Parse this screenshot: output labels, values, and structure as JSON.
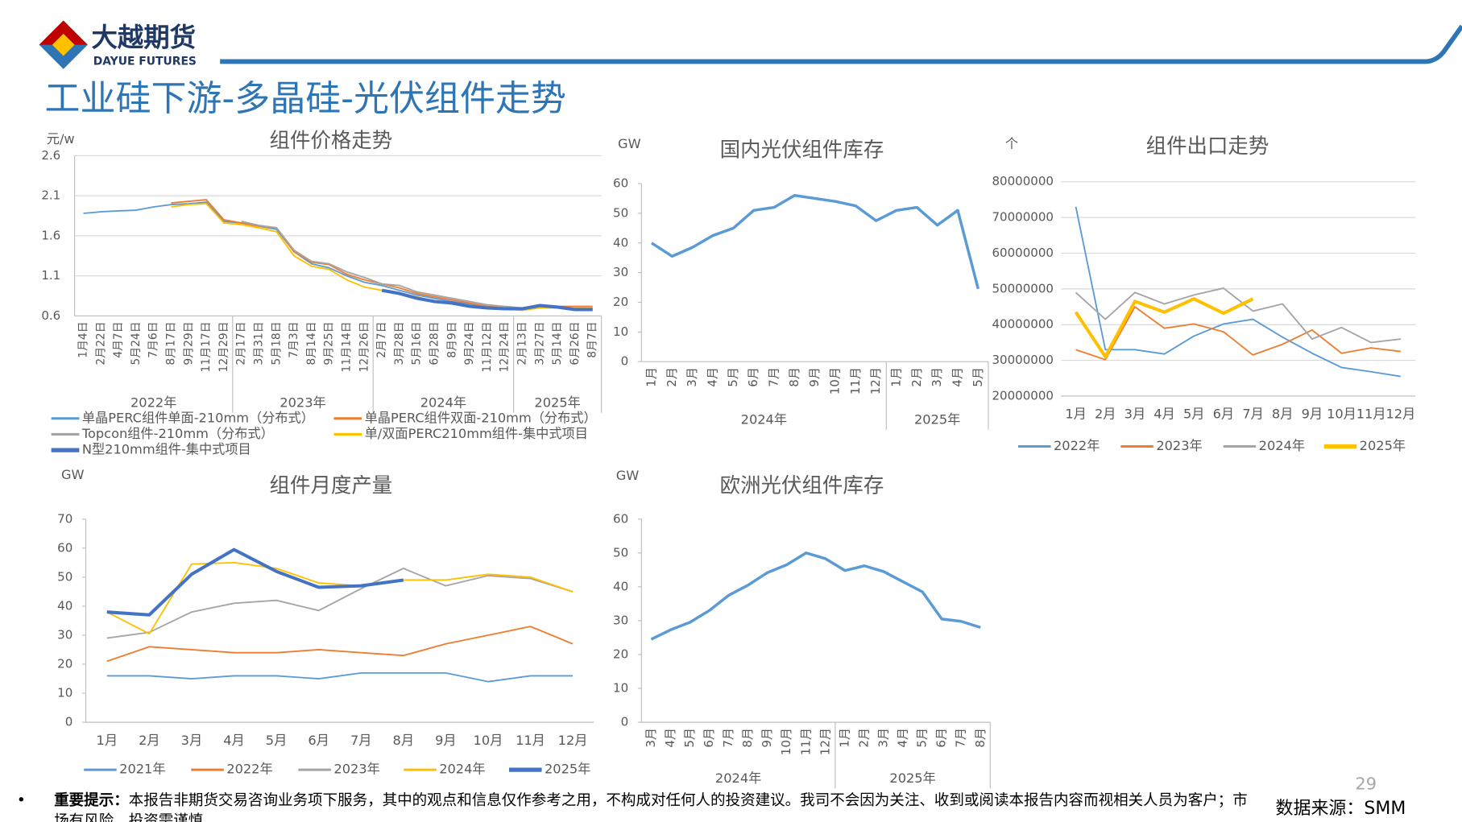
{
  "header": {
    "logo_cn": "大越期货",
    "logo_en": "DAYUE FUTURES",
    "title": "工业硅下游-多晶硅-光伏组件走势"
  },
  "footer": {
    "bullet": "•",
    "label": "重要提示：",
    "text": "本报告非期货交易咨询业务项下服务，其中的观点和信息仅作参考之用，不构成对任何人的投资建议。我司不会因为关注、收到或阅读本报告内容而视相关人员为客户；市场有风险，投资需谨慎。",
    "source": "数据来源：SMM",
    "page": "29"
  },
  "chart_data": [
    {
      "type": "line",
      "title": "组件价格走势",
      "y_unit": "元/w",
      "grid": true,
      "ylim": [
        0.6,
        2.6
      ],
      "yticks": [
        0.6,
        1.1,
        1.6,
        2.1,
        2.6
      ],
      "groups": [
        {
          "label": "2022年",
          "categories": [
            "1月4日",
            "2月22日",
            "4月7日",
            "5月24日",
            "7月6日",
            "8月17日",
            "9月29日",
            "11月17日",
            "12月29日"
          ]
        },
        {
          "label": "2023年",
          "categories": [
            "2月17日",
            "3月31日",
            "5月18日",
            "7月3日",
            "8月14日",
            "9月25日",
            "11月14日",
            "12月26日"
          ]
        },
        {
          "label": "2024年",
          "categories": [
            "2月7日",
            "3月28日",
            "5月16日",
            "6月28日",
            "8月9日",
            "9月24日",
            "11月12日",
            "12月24日"
          ]
        },
        {
          "label": "2025年",
          "categories": [
            "2月13日",
            "3月27日",
            "5月14日",
            "6月26日",
            "8月7日"
          ]
        }
      ],
      "series": [
        {
          "name": "单晶PERC组件单面-210mm（分布式）",
          "color": "#5b9bd5",
          "values": [
            1.88,
            1.9,
            1.91,
            1.92,
            1.96,
            1.99,
            2.0,
            2.02,
            1.78,
            1.76,
            1.72,
            1.68,
            1.4,
            1.25,
            1.2,
            1.1,
            1.02,
            0.98,
            0.92,
            0.86,
            0.82,
            0.78,
            0.75,
            0.72,
            0.7,
            0.68,
            0.74,
            0.72,
            0.7,
            0.68
          ]
        },
        {
          "name": "单晶PERC组件双面-210mm（分布式）",
          "color": "#ed7d31",
          "values": [
            null,
            null,
            null,
            null,
            null,
            2.01,
            2.03,
            2.05,
            1.8,
            1.76,
            1.72,
            1.7,
            1.4,
            1.27,
            1.24,
            1.12,
            1.05,
            1.0,
            0.95,
            0.88,
            0.84,
            0.8,
            0.76,
            0.72,
            0.7,
            0.7,
            0.72,
            0.72,
            0.72,
            0.72
          ]
        },
        {
          "name": "Topcon组件-210mm（分布式）",
          "color": "#a5a5a5",
          "values": [
            null,
            null,
            null,
            null,
            null,
            null,
            null,
            null,
            null,
            1.78,
            1.73,
            1.7,
            1.42,
            1.28,
            1.25,
            1.15,
            1.08,
            1.0,
            0.98,
            0.9,
            0.86,
            0.82,
            0.78,
            0.74,
            0.72,
            0.7,
            0.72,
            0.71,
            0.7,
            0.7
          ]
        },
        {
          "name": "单/双面PERC210mm组件-集中式项目",
          "color": "#ffc000",
          "values": [
            null,
            null,
            null,
            null,
            null,
            1.96,
            1.99,
            2.0,
            1.76,
            1.74,
            1.7,
            1.65,
            1.35,
            1.22,
            1.18,
            1.05,
            0.96,
            0.92,
            0.88,
            0.84,
            0.78,
            0.76,
            0.72,
            0.7,
            0.69,
            0.67,
            0.7,
            0.7,
            0.7,
            0.7
          ]
        },
        {
          "name": "N型210mm组件-集中式项目",
          "color": "#4472c4",
          "values": [
            null,
            null,
            null,
            null,
            null,
            null,
            null,
            null,
            null,
            null,
            null,
            null,
            null,
            null,
            null,
            null,
            null,
            0.92,
            0.88,
            0.82,
            0.78,
            0.76,
            0.72,
            0.7,
            0.69,
            0.69,
            0.73,
            0.71,
            0.68,
            0.68
          ]
        }
      ]
    },
    {
      "type": "line",
      "title": "国内光伏组件库存",
      "y_unit": "GW",
      "grid": false,
      "ylim": [
        0,
        60
      ],
      "yticks": [
        0,
        10,
        20,
        30,
        40,
        50,
        60
      ],
      "color": "#5b9bd5",
      "groups": [
        {
          "label": "2024年",
          "categories": [
            "1月",
            "2月",
            "3月",
            "4月",
            "5月",
            "6月",
            "7月",
            "8月",
            "9月",
            "10月",
            "11月",
            "12月"
          ]
        },
        {
          "label": "2025年",
          "categories": [
            "1月",
            "2月",
            "3月",
            "4月",
            "5月"
          ]
        }
      ],
      "values": [
        40,
        35.5,
        38.5,
        42.5,
        45,
        51,
        52,
        56,
        55,
        54,
        52.5,
        47.5,
        51,
        52,
        46,
        51,
        24.5
      ]
    },
    {
      "type": "line",
      "title": "组件出口走势",
      "y_unit": "个",
      "grid": true,
      "ylim": [
        20000000,
        80000000
      ],
      "yticks": [
        20000000,
        30000000,
        40000000,
        50000000,
        60000000,
        70000000,
        80000000
      ],
      "categories": [
        "1月",
        "2月",
        "3月",
        "4月",
        "5月",
        "6月",
        "7月",
        "8月",
        "9月",
        "10月",
        "11月",
        "12月"
      ],
      "series": [
        {
          "name": "2022年",
          "color": "#5b9bd5",
          "values": [
            73000000,
            33000000,
            33000000,
            31800000,
            36800000,
            40200000,
            41500000,
            36500000,
            32000000,
            28000000,
            26800000,
            25500000
          ]
        },
        {
          "name": "2023年",
          "color": "#ed7d31",
          "values": [
            33000000,
            30200000,
            45000000,
            39000000,
            40200000,
            38000000,
            31500000,
            34500000,
            38500000,
            32000000,
            33500000,
            32500000
          ]
        },
        {
          "name": "2024年",
          "color": "#a5a5a5",
          "values": [
            49000000,
            41500000,
            49000000,
            45800000,
            48300000,
            50200000,
            43800000,
            45800000,
            36000000,
            39200000,
            35000000,
            36000000
          ]
        },
        {
          "name": "2025年",
          "color": "#ffc000",
          "values": [
            43500000,
            31000000,
            46500000,
            43500000,
            47200000,
            43200000,
            47200000,
            null,
            null,
            null,
            null,
            null
          ]
        }
      ]
    },
    {
      "type": "line",
      "title": "组件月度产量",
      "y_unit": "GW",
      "grid": false,
      "ylim": [
        0,
        70
      ],
      "yticks": [
        0,
        10,
        20,
        30,
        40,
        50,
        60,
        70
      ],
      "categories": [
        "1月",
        "2月",
        "3月",
        "4月",
        "5月",
        "6月",
        "7月",
        "8月",
        "9月",
        "10月",
        "11月",
        "12月"
      ],
      "series": [
        {
          "name": "2021年",
          "color": "#5b9bd5",
          "values": [
            16,
            16,
            15,
            16,
            16,
            15,
            17,
            17,
            17,
            14,
            16,
            16
          ]
        },
        {
          "name": "2022年",
          "color": "#ed7d31",
          "values": [
            21,
            26,
            25,
            24,
            24,
            25,
            24,
            23,
            27,
            30,
            33,
            27
          ]
        },
        {
          "name": "2023年",
          "color": "#a5a5a5",
          "values": [
            29,
            31,
            38,
            41,
            42,
            38.5,
            46,
            53,
            47,
            50.5,
            49.5,
            45
          ]
        },
        {
          "name": "2024年",
          "color": "#ffc000",
          "values": [
            38,
            30.5,
            54.5,
            55,
            53,
            48,
            47,
            49,
            49,
            51,
            50,
            45
          ]
        },
        {
          "name": "2025年",
          "color": "#4472c4",
          "values": [
            38,
            37,
            51,
            59.5,
            52,
            46.5,
            47,
            49,
            null,
            null,
            null,
            null
          ]
        }
      ]
    },
    {
      "type": "line",
      "title": "欧洲光伏组件库存",
      "y_unit": "GW",
      "grid": false,
      "ylim": [
        0,
        60
      ],
      "yticks": [
        0,
        10,
        20,
        30,
        40,
        50,
        60
      ],
      "color": "#5b9bd5",
      "groups": [
        {
          "label": "2024年",
          "categories": [
            "3月",
            "4月",
            "5月",
            "6月",
            "7月",
            "8月",
            "9月",
            "10月",
            "11月",
            "12月"
          ]
        },
        {
          "label": "2025年",
          "categories": [
            "1月",
            "2月",
            "3月",
            "4月",
            "5月",
            "6月",
            "7月",
            "8月"
          ]
        }
      ],
      "values": [
        24.5,
        27.3,
        29.5,
        33,
        37.5,
        40.5,
        44.2,
        46.5,
        50,
        48.3,
        44.8,
        46.2,
        44.5,
        41.5,
        38.5,
        30.5,
        29.8,
        28
      ]
    }
  ]
}
